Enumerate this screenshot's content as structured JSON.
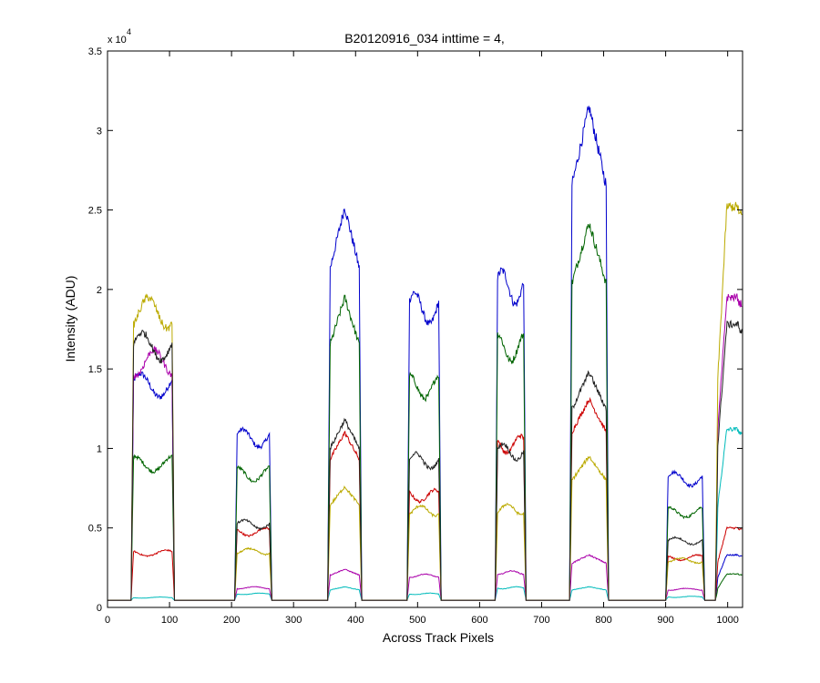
{
  "chart_data": {
    "type": "line",
    "title": "B20120916_034 inttime = 4,",
    "xlabel": "Across Track Pixels",
    "ylabel": "Intensity (ADU)",
    "y_multiplier_label": "x 10",
    "y_multiplier_exponent": "4",
    "xlim": [
      0,
      1024
    ],
    "ylim": [
      0,
      35000
    ],
    "x_ticks": [
      0,
      100,
      200,
      300,
      400,
      500,
      600,
      700,
      800,
      900,
      1000
    ],
    "y_ticks": [
      0,
      5000,
      10000,
      15000,
      20000,
      25000,
      30000,
      35000
    ],
    "y_tick_labels": [
      "0",
      "0.5",
      "1",
      "1.5",
      "2",
      "2.5",
      "3",
      "3.5"
    ],
    "grid": false,
    "legend": "none",
    "baseline": 450,
    "plateaus": [
      {
        "start": 38,
        "end": 108,
        "shape": "flat"
      },
      {
        "start": 205,
        "end": 265,
        "shape": "flat"
      },
      {
        "start": 355,
        "end": 410,
        "shape": "peak"
      },
      {
        "start": 483,
        "end": 538,
        "shape": "flat"
      },
      {
        "start": 625,
        "end": 675,
        "shape": "flat"
      },
      {
        "start": 745,
        "end": 808,
        "shape": "peak"
      },
      {
        "start": 900,
        "end": 963,
        "shape": "flat"
      },
      {
        "start": 980,
        "end": 1024,
        "shape": "ramp"
      }
    ],
    "series": [
      {
        "color": "#0000cc",
        "values": [
          14700,
          11200,
          25200,
          19800,
          21200,
          31500,
          8500,
          3300
        ]
      },
      {
        "color": "#006400",
        "values": [
          9500,
          8800,
          19500,
          14600,
          17200,
          24200,
          6300,
          2100
        ]
      },
      {
        "color": "#cc0000",
        "values": [
          3600,
          5000,
          11000,
          7400,
          10800,
          13100,
          3300,
          5000
        ]
      },
      {
        "color": "#00bbbb",
        "values": [
          650,
          900,
          1300,
          900,
          1300,
          1300,
          700,
          11200
        ]
      },
      {
        "color": "#aa00aa",
        "values": [
          16200,
          1300,
          2400,
          2100,
          2300,
          3300,
          1200,
          19500
        ]
      },
      {
        "color": "#bbaa00",
        "values": [
          19500,
          3700,
          7600,
          6400,
          6500,
          9500,
          3100,
          25200
        ]
      },
      {
        "color": "#222222",
        "values": [
          17300,
          5500,
          11800,
          9700,
          10300,
          14800,
          4400,
          17800
        ]
      }
    ]
  }
}
